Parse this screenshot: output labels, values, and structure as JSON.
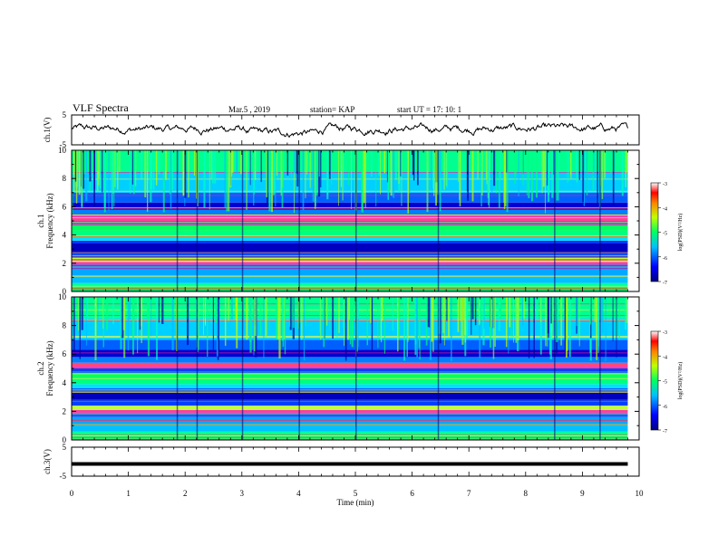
{
  "header": {
    "title": "VLF Spectra",
    "date": "Mar.5  , 2019",
    "station": "station= KAP",
    "start_ut": "start  UT  =   17: 10: 1"
  },
  "chart_data": [
    {
      "type": "line",
      "panel": "ch1-waveform",
      "ylabel": "ch.1(V)",
      "ylim": [
        -5,
        5
      ],
      "yticks": [
        "5",
        "-5"
      ],
      "xlim": [
        0,
        10
      ],
      "series": [
        {
          "values_approx_range": [
            -2.5,
            2.2
          ],
          "color": "#000000"
        }
      ]
    },
    {
      "type": "heatmap",
      "panel": "ch1-spectrogram",
      "ylabel": "ch.1\nFrequency  (kHz)",
      "ylim": [
        0,
        10
      ],
      "yticks": [
        "0",
        "2",
        "4",
        "6",
        "8",
        "10"
      ],
      "xlim": [
        0,
        9.8
      ],
      "colorbar": {
        "label": "log(PSD)(V²/Hz)",
        "range": [
          -7,
          -3
        ],
        "ticks": [
          "-3",
          "-4",
          "-5",
          "-6",
          "-7"
        ]
      }
    },
    {
      "type": "heatmap",
      "panel": "ch2-spectrogram",
      "ylabel": "ch.2\nFrequency  (kHz)",
      "ylim": [
        0,
        10
      ],
      "yticks": [
        "0",
        "2",
        "4",
        "6",
        "8",
        "10"
      ],
      "xlim": [
        0,
        9.8
      ],
      "colorbar": {
        "label": "log(PSD)(V²/Hz)",
        "range": [
          -7,
          -3
        ],
        "ticks": [
          "-3",
          "-4",
          "-5",
          "-6",
          "-7"
        ]
      }
    },
    {
      "type": "line",
      "panel": "ch3-waveform",
      "ylabel": "ch.3(V)",
      "ylim": [
        -5,
        5
      ],
      "yticks": [
        "5",
        "-5"
      ],
      "xlim": [
        0,
        10
      ],
      "series": [
        {
          "values": [
            -0.8,
            -0.8
          ],
          "x": [
            0,
            9.8
          ],
          "color": "#000000"
        }
      ]
    }
  ],
  "xaxis": {
    "label": "Time  (min)",
    "ticks": [
      "0",
      "1",
      "2",
      "3",
      "4",
      "5",
      "6",
      "7",
      "8",
      "9",
      "10"
    ]
  },
  "colors": {
    "spectro_low": "#00008f",
    "spectro_mid": "#00ff80",
    "spectro_high": "#ff0000",
    "axis": "#000000"
  }
}
